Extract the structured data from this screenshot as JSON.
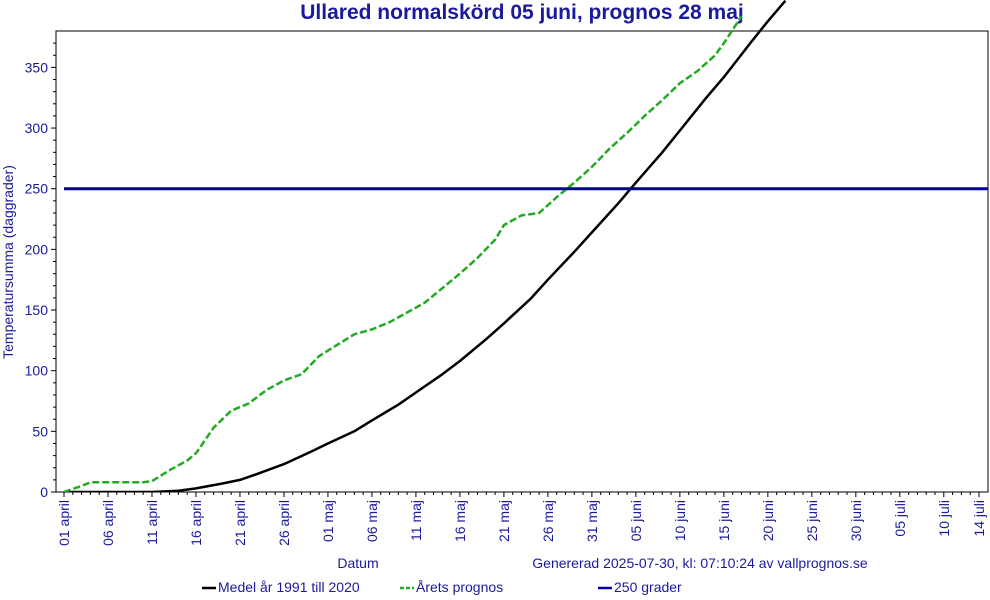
{
  "chart_data": {
    "type": "line",
    "title": "Ullared normalskörd 05 juni, prognos 28 maj",
    "xlabel": "Datum",
    "ylabel": "Temperatursumma (daggrader)",
    "footer": "Genererad 2025-07-30, kl: 07:10:24 av vallprognos.se",
    "ylim": [
      0,
      380
    ],
    "yticks": [
      0,
      50,
      100,
      150,
      200,
      250,
      300,
      350
    ],
    "xlim": [
      0,
      105
    ],
    "xticks": [
      {
        "day": 0,
        "label": "01 april"
      },
      {
        "day": 5,
        "label": "06 april"
      },
      {
        "day": 10,
        "label": "11 april"
      },
      {
        "day": 15,
        "label": "16 april"
      },
      {
        "day": 20,
        "label": "21 april"
      },
      {
        "day": 25,
        "label": "26 april"
      },
      {
        "day": 30,
        "label": "01 maj"
      },
      {
        "day": 35,
        "label": "06 maj"
      },
      {
        "day": 40,
        "label": "11 maj"
      },
      {
        "day": 45,
        "label": "16 maj"
      },
      {
        "day": 50,
        "label": "21 maj"
      },
      {
        "day": 55,
        "label": "26 maj"
      },
      {
        "day": 60,
        "label": "31 maj"
      },
      {
        "day": 65,
        "label": "05 juni"
      },
      {
        "day": 70,
        "label": "10 juni"
      },
      {
        "day": 75,
        "label": "15 juni"
      },
      {
        "day": 80,
        "label": "20 juni"
      },
      {
        "day": 85,
        "label": "25 juni"
      },
      {
        "day": 90,
        "label": "30 juni"
      },
      {
        "day": 95,
        "label": "05 juli"
      },
      {
        "day": 100,
        "label": "10 juli"
      },
      {
        "day": 104,
        "label": "14 juli"
      }
    ],
    "series": [
      {
        "name": "Medel år 1991 till 2020",
        "color": "#000000",
        "style": "solid",
        "x": [
          0,
          5,
          10,
          13,
          15,
          18,
          20,
          22,
          25,
          28,
          30,
          33,
          35,
          38,
          40,
          43,
          45,
          48,
          50,
          53,
          55,
          58,
          60,
          63,
          65,
          68,
          70,
          73,
          75,
          78,
          80,
          82
        ],
        "values": [
          0,
          0,
          0,
          1,
          3,
          7,
          10,
          15,
          23,
          33,
          40,
          50,
          59,
          72,
          82,
          97,
          108,
          126,
          139,
          159,
          175,
          198,
          214,
          238,
          255,
          280,
          298,
          325,
          342,
          370,
          388,
          405
        ]
      },
      {
        "name": "Årets prognos",
        "color": "#22aa22",
        "style": "dashed",
        "x": [
          0,
          2,
          3,
          5,
          7,
          9,
          10,
          12,
          14,
          15,
          17,
          19,
          21,
          23,
          25,
          27,
          29,
          31,
          33,
          35,
          37,
          39,
          41,
          43,
          45,
          47,
          49,
          50,
          52,
          54,
          56,
          58,
          60,
          62,
          64,
          66,
          68,
          70,
          72,
          74,
          75,
          77
        ],
        "values": [
          0,
          5,
          8,
          8,
          8,
          8,
          9,
          18,
          26,
          32,
          53,
          67,
          73,
          84,
          92,
          97,
          112,
          121,
          130,
          134,
          140,
          148,
          156,
          168,
          180,
          193,
          208,
          220,
          228,
          230,
          243,
          255,
          268,
          283,
          296,
          310,
          323,
          337,
          347,
          360,
          370,
          392
        ]
      },
      {
        "name": "250 grader",
        "color": "#0000aa",
        "style": "solid",
        "x": [
          0,
          105
        ],
        "values": [
          250,
          250
        ]
      }
    ],
    "grid": false,
    "legend_position": "bottom"
  }
}
